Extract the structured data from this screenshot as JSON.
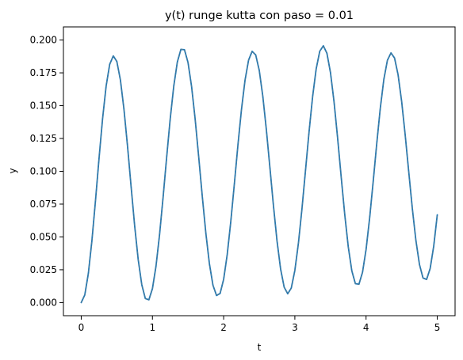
{
  "chart_data": {
    "type": "line",
    "title": "y(t) runge kutta con paso = 0.01",
    "xlabel": "t",
    "ylabel": "y",
    "xlim": [
      -0.25,
      5.25
    ],
    "ylim": [
      -0.01,
      0.21
    ],
    "x_ticks": [
      0,
      1,
      2,
      3,
      4,
      5
    ],
    "x_tick_labels": [
      "0",
      "1",
      "2",
      "3",
      "4",
      "5"
    ],
    "y_ticks": [
      0.0,
      0.025,
      0.05,
      0.075,
      0.1,
      0.125,
      0.15,
      0.175,
      0.2
    ],
    "y_tick_labels": [
      "0.000",
      "0.025",
      "0.050",
      "0.075",
      "0.100",
      "0.125",
      "0.150",
      "0.175",
      "0.200"
    ],
    "grid": false,
    "legend": "none",
    "line_color": "#1f77b4",
    "overlay_color": "#5f7f8f",
    "series": [
      {
        "x": [
          0,
          0.05,
          0.1,
          0.15,
          0.2,
          0.25,
          0.3,
          0.35,
          0.4,
          0.45,
          0.5,
          0.55,
          0.6,
          0.65,
          0.7,
          0.75,
          0.8,
          0.85,
          0.9,
          0.95,
          1.0,
          1.05,
          1.1,
          1.15,
          1.2,
          1.25,
          1.3,
          1.35,
          1.4,
          1.45,
          1.5,
          1.55,
          1.6,
          1.65,
          1.7,
          1.75,
          1.8,
          1.85,
          1.9,
          1.95,
          2.0,
          2.05,
          2.1,
          2.15,
          2.2,
          2.25,
          2.3,
          2.35,
          2.4,
          2.45,
          2.5,
          2.55,
          2.6,
          2.65,
          2.7,
          2.75,
          2.8,
          2.85,
          2.9,
          2.95,
          3.0,
          3.05,
          3.1,
          3.15,
          3.2,
          3.25,
          3.3,
          3.35,
          3.4,
          3.45,
          3.5,
          3.55,
          3.6,
          3.65,
          3.7,
          3.75,
          3.8,
          3.85,
          3.9,
          3.95,
          4.0,
          4.05,
          4.1,
          4.15,
          4.2,
          4.25,
          4.3,
          4.35,
          4.4,
          4.45,
          4.5,
          4.55,
          4.6,
          4.65,
          4.7,
          4.75,
          4.8,
          4.85,
          4.9,
          4.95,
          5.0
        ],
        "y": [
          0.0,
          0.0058,
          0.0222,
          0.0471,
          0.0775,
          0.1098,
          0.1402,
          0.165,
          0.1815,
          0.1879,
          0.1837,
          0.1697,
          0.1473,
          0.1193,
          0.0886,
          0.0587,
          0.0328,
          0.0137,
          0.0031,
          0.0021,
          0.0106,
          0.0277,
          0.0517,
          0.0804,
          0.1109,
          0.1401,
          0.1651,
          0.1833,
          0.1929,
          0.1926,
          0.1828,
          0.1645,
          0.1397,
          0.1108,
          0.0809,
          0.0529,
          0.0296,
          0.0132,
          0.0054,
          0.0069,
          0.0177,
          0.0365,
          0.0615,
          0.0901,
          0.1196,
          0.1469,
          0.1693,
          0.1847,
          0.1914,
          0.1887,
          0.1769,
          0.1572,
          0.1316,
          0.1027,
          0.0735,
          0.0468,
          0.0255,
          0.0117,
          0.0067,
          0.0111,
          0.0245,
          0.0452,
          0.0715,
          0.1009,
          0.1304,
          0.1571,
          0.1782,
          0.1915,
          0.1956,
          0.19,
          0.1753,
          0.1531,
          0.1257,
          0.0961,
          0.0674,
          0.0425,
          0.0242,
          0.0144,
          0.014,
          0.023,
          0.0404,
          0.0643,
          0.0921,
          0.1211,
          0.1481,
          0.1701,
          0.1846,
          0.1902,
          0.1863,
          0.1734,
          0.1531,
          0.1274,
          0.0992,
          0.0715,
          0.0473,
          0.029,
          0.0187,
          0.0176,
          0.0259,
          0.0429,
          0.0668
        ]
      }
    ]
  }
}
